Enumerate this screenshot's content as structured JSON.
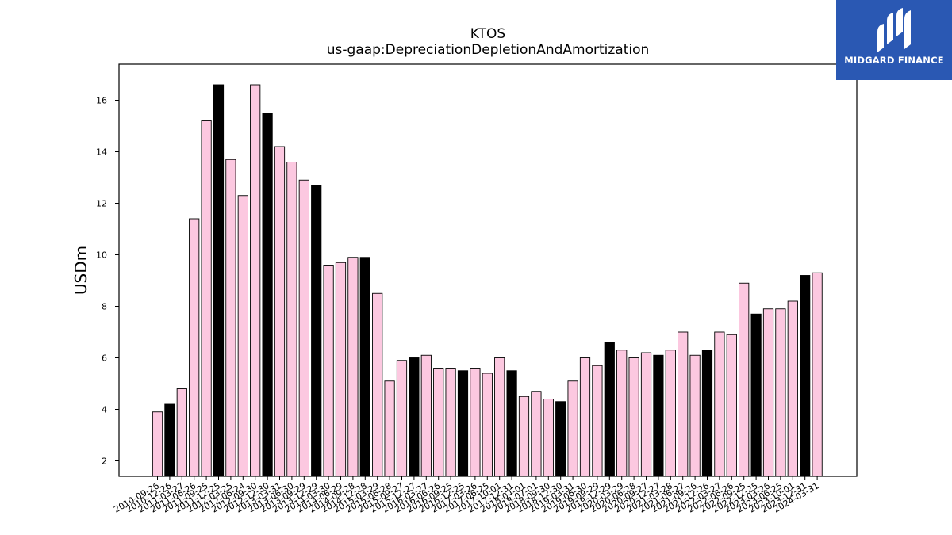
{
  "chart_data": {
    "type": "bar",
    "title": "KTOS",
    "subtitle": "us-gaap:DepreciationDepletionAndAmortization",
    "ylabel": "USDm",
    "xlabel": "",
    "ylim": [
      1.4,
      17.4
    ],
    "yticks": [
      2,
      4,
      6,
      8,
      10,
      12,
      14,
      16
    ],
    "grid": false,
    "colors": {
      "quarter": "#fcc8e0",
      "year_end": "#000000",
      "edge": "#000000"
    },
    "categories": [
      "2010-09-26",
      "2010-12-26",
      "2011-03-27",
      "2011-06-26",
      "2011-09-25",
      "2011-12-25",
      "2012-03-25",
      "2012-06-24",
      "2012-09-30",
      "2012-12-30",
      "2013-03-31",
      "2013-06-30",
      "2013-09-29",
      "2013-12-29",
      "2014-03-30",
      "2014-06-29",
      "2014-09-28",
      "2014-12-28",
      "2015-03-29",
      "2015-06-28",
      "2015-09-27",
      "2015-12-27",
      "2016-03-27",
      "2016-06-26",
      "2016-09-25",
      "2016-12-25",
      "2017-03-26",
      "2017-06-25",
      "2017-10-01",
      "2017-12-31",
      "2018-04-01",
      "2018-07-01",
      "2018-09-30",
      "2018-12-30",
      "2019-03-31",
      "2019-06-30",
      "2019-09-29",
      "2019-12-29",
      "2020-03-29",
      "2020-06-28",
      "2020-09-27",
      "2020-12-27",
      "2021-03-28",
      "2021-06-27",
      "2021-09-26",
      "2021-12-26",
      "2022-03-27",
      "2022-06-26",
      "2022-09-25",
      "2022-12-25",
      "2023-03-26",
      "2023-06-25",
      "2023-10-01",
      "2023-12-31",
      "2024-03-31"
    ],
    "values": [
      3.9,
      4.2,
      4.8,
      11.4,
      15.2,
      16.6,
      13.7,
      12.3,
      16.6,
      15.5,
      14.2,
      13.6,
      12.9,
      12.7,
      9.6,
      9.7,
      9.9,
      9.9,
      8.5,
      5.1,
      5.9,
      6.0,
      6.1,
      5.6,
      5.6,
      5.5,
      5.6,
      5.4,
      6.0,
      5.5,
      4.5,
      4.7,
      4.4,
      4.3,
      5.1,
      6.0,
      5.7,
      6.6,
      6.3,
      6.0,
      6.2,
      6.1,
      6.3,
      7.0,
      6.1,
      6.3,
      7.0,
      6.9,
      8.9,
      7.7,
      7.9,
      7.9,
      8.2,
      9.2,
      9.3
    ],
    "highlight": [
      false,
      true,
      false,
      false,
      false,
      true,
      false,
      false,
      false,
      true,
      false,
      false,
      false,
      true,
      false,
      false,
      false,
      true,
      false,
      false,
      false,
      true,
      false,
      false,
      false,
      true,
      false,
      false,
      false,
      true,
      false,
      false,
      false,
      true,
      false,
      false,
      false,
      true,
      false,
      false,
      false,
      true,
      false,
      false,
      false,
      true,
      false,
      false,
      false,
      true,
      false,
      false,
      false,
      true,
      false
    ]
  },
  "logo": {
    "text": "MIDGARD FINANCE",
    "color": "#2a58b3"
  }
}
